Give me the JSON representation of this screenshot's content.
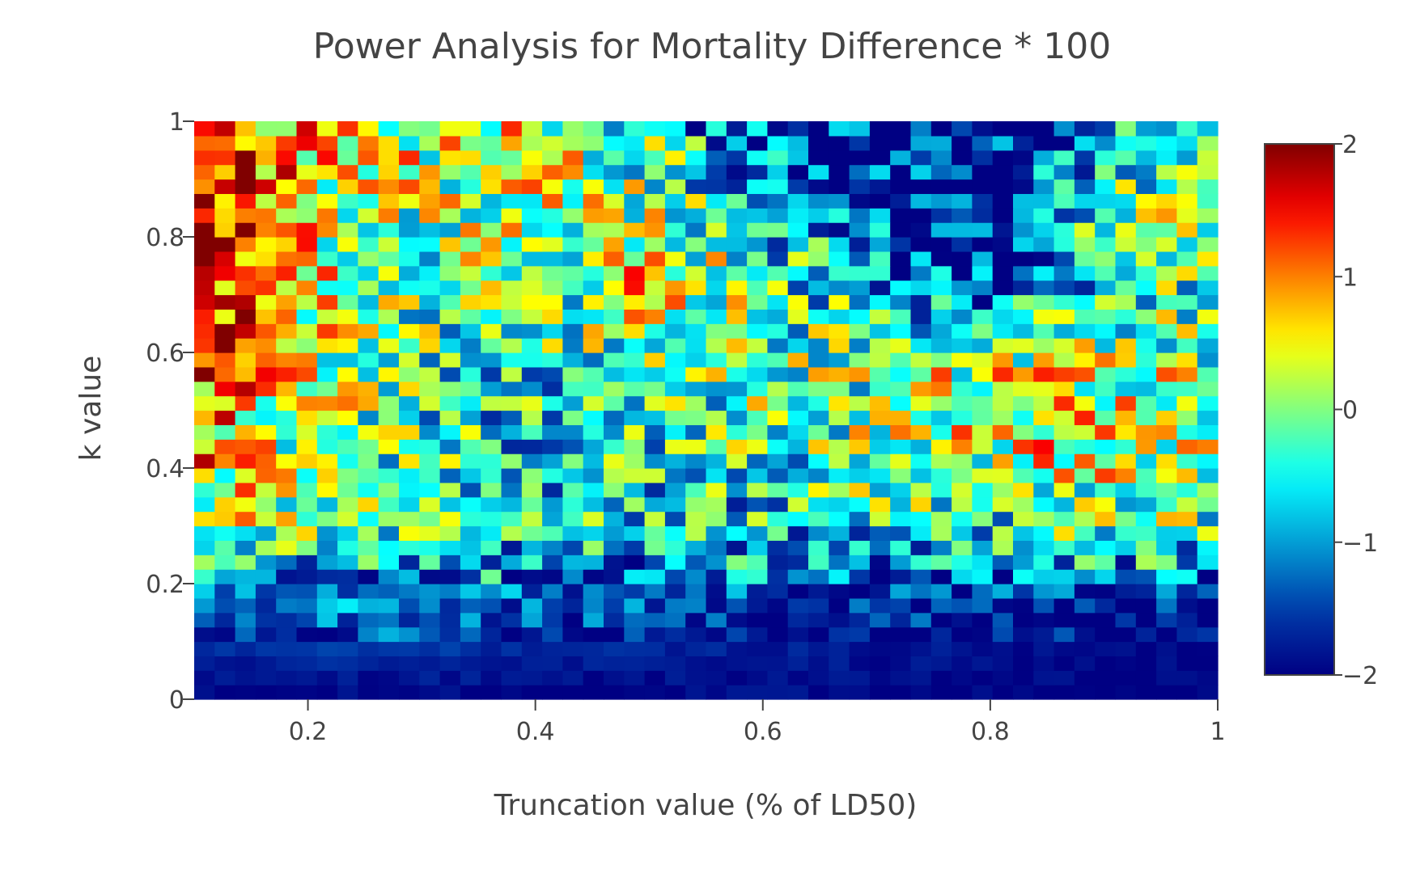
{
  "chart_data": {
    "type": "heatmap",
    "title": "Power Analysis for Mortality Difference * 100",
    "xlabel": "Truncation value (% of LD50)",
    "ylabel": "k value",
    "xlim": [
      0.1,
      1.0
    ],
    "ylim": [
      0,
      1
    ],
    "x_ticks": [
      0.2,
      0.4,
      0.6,
      0.8,
      1.0
    ],
    "x_tick_labels": [
      "0.2",
      "0.4",
      "0.6",
      "0.8",
      "1"
    ],
    "y_ticks": [
      0,
      0.2,
      0.4,
      0.6,
      0.8,
      1.0
    ],
    "y_tick_labels": [
      "0",
      "0.2",
      "0.4",
      "0.6",
      "0.8",
      "1"
    ],
    "colorscale": "jet",
    "zlim": [
      -2,
      2
    ],
    "colorbar_ticks": [
      -2,
      -1,
      0,
      1,
      2
    ],
    "colorbar_tick_labels": [
      "−2",
      "−1",
      "0",
      "1",
      "2"
    ],
    "n_cols": 50,
    "n_rows": 40,
    "z_approx_summary": [
      [
        -2.0,
        -2.0,
        -1.9,
        -2.0,
        -2.0,
        -1.9,
        -2.0,
        -2.0,
        -2.0,
        -2.0
      ],
      [
        -1.4,
        -1.2,
        -1.3,
        -1.4,
        -1.5,
        -1.6,
        -1.7,
        -1.8,
        -1.9,
        -1.9
      ],
      [
        0.2,
        -0.3,
        -0.6,
        -0.8,
        -0.7,
        -0.8,
        -0.7,
        -0.6,
        -0.3,
        -0.2
      ],
      [
        0.8,
        0.0,
        -0.5,
        -0.7,
        -0.6,
        -0.4,
        0.0,
        0.3,
        0.5,
        0.2
      ],
      [
        1.3,
        0.2,
        -0.3,
        -0.6,
        -0.4,
        0.0,
        -0.2,
        0.4,
        0.3,
        0.0
      ],
      [
        1.6,
        0.3,
        -0.2,
        -0.3,
        0.6,
        -0.2,
        -0.9,
        -1.5,
        -0.6,
        -0.2
      ],
      [
        1.7,
        0.5,
        0.0,
        0.2,
        0.1,
        -0.8,
        -1.6,
        -1.9,
        -0.5,
        0.4
      ],
      [
        1.6,
        0.6,
        0.3,
        0.5,
        -0.5,
        -1.5,
        -1.9,
        -2.0,
        -1.3,
        -0.2
      ]
    ]
  }
}
